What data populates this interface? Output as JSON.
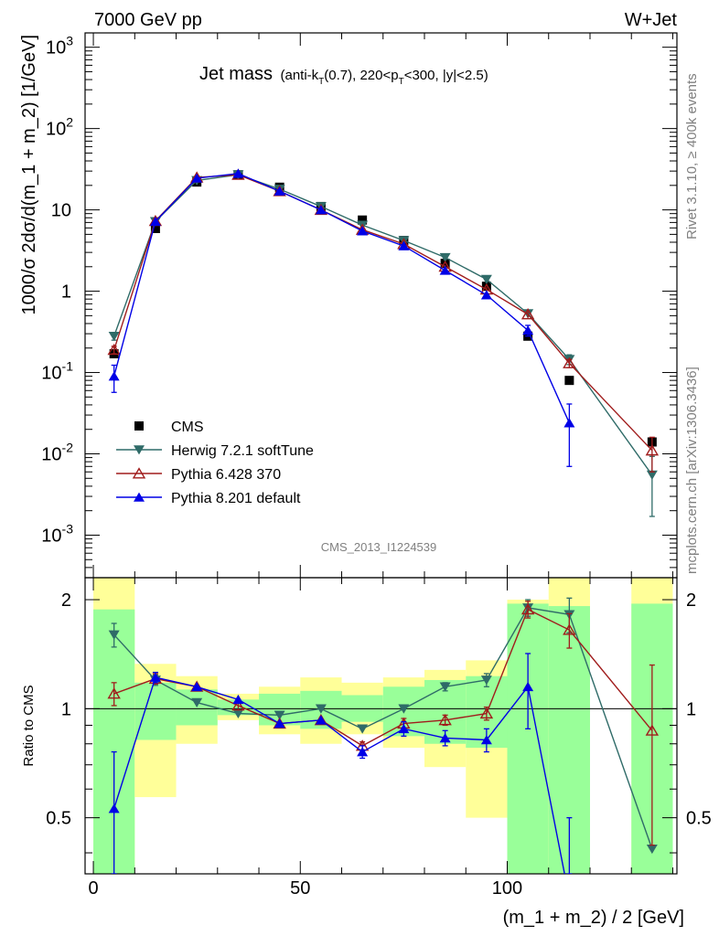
{
  "header": {
    "left_label": "7000 GeV pp",
    "right_label": "W+Jet",
    "side_label_top": "Rivet 3.1.10, ≥ 400k events",
    "side_label_bottom": "mcplots.cern.ch [arXiv:1306.3436]",
    "analysis_id": "CMS_2013_I1224539"
  },
  "chart_data": [
    {
      "type": "line",
      "panel": "main",
      "title_main": "Jet mass",
      "title_detail": "(anti-kT(0.7), 220<pT<300, |y|<2.5)",
      "ylabel": "1000/σ 2dσ/d(m_1 + m_2) [1/GeV]",
      "yscale": "log",
      "ylim": [
        0.0003,
        1500
      ],
      "xlim": [
        -2,
        141
      ],
      "y_ticks": [
        "10^-3",
        "10^-2",
        "10^-1",
        "1",
        "10",
        "10^2",
        "10^3"
      ],
      "legend_position": "bottom-left",
      "series": [
        {
          "name": "CMS",
          "marker": "square",
          "color": "#000000",
          "x": [
            5,
            15,
            25,
            35,
            45,
            55,
            65,
            75,
            85,
            95,
            105,
            115,
            135
          ],
          "y": [
            0.17,
            5.9,
            22.0,
            27.0,
            19.0,
            11.0,
            7.5,
            4.2,
            2.2,
            1.15,
            0.28,
            0.08,
            0.014
          ]
        },
        {
          "name": "Herwig 7.2.1 softTune",
          "marker": "triangle-down",
          "color": "#2f6b68",
          "x": [
            5,
            15,
            25,
            35,
            45,
            55,
            65,
            75,
            85,
            95,
            105,
            115,
            135
          ],
          "y": [
            0.28,
            7.2,
            23.0,
            27.0,
            18.0,
            11.0,
            6.5,
            4.2,
            2.6,
            1.4,
            0.53,
            0.145,
            0.0055
          ],
          "yerr": [
            0.03,
            0.3,
            0.5,
            0.5,
            0.4,
            0.3,
            0.2,
            0.15,
            0.1,
            0.08,
            0.04,
            0.02,
            0.0038
          ]
        },
        {
          "name": "Pythia 6.428 370",
          "marker": "triangle-open",
          "color": "#a01c1c",
          "x": [
            5,
            15,
            25,
            35,
            45,
            55,
            65,
            75,
            85,
            95,
            105,
            115,
            135
          ],
          "y": [
            0.19,
            7.3,
            25.0,
            27.0,
            17.0,
            10.0,
            5.7,
            3.8,
            2.0,
            1.05,
            0.52,
            0.13,
            0.011
          ],
          "yerr": [
            0.02,
            0.3,
            0.5,
            0.5,
            0.4,
            0.3,
            0.2,
            0.15,
            0.1,
            0.07,
            0.05,
            0.015,
            0.005
          ]
        },
        {
          "name": "Pythia 8.201 default",
          "marker": "triangle-up",
          "color": "#0000e6",
          "x": [
            5,
            15,
            25,
            35,
            45,
            55,
            65,
            75,
            85,
            95,
            105,
            115
          ],
          "y": [
            0.09,
            7.2,
            24.5,
            28.0,
            17.0,
            10.0,
            5.5,
            3.6,
            1.8,
            0.9,
            0.33,
            0.024
          ],
          "yerr": [
            0.033,
            0.3,
            0.5,
            0.5,
            0.4,
            0.3,
            0.2,
            0.15,
            0.1,
            0.06,
            0.05,
            0.017
          ]
        }
      ]
    },
    {
      "type": "line",
      "panel": "ratio",
      "ylabel": "Ratio to CMS",
      "xlabel": "(m_1 + m_2) / 2 [GeV]",
      "ylim": [
        0.35,
        2.3
      ],
      "xlim": [
        -2,
        141
      ],
      "x_ticks": [
        0,
        50,
        100
      ],
      "y_ticks": [
        0.5,
        1,
        2
      ],
      "reference_line": 1,
      "bands": {
        "inner_color": "#99ff99",
        "outer_color": "#ffff99",
        "bins": [
          {
            "x0": 0,
            "x1": 10,
            "inner": [
              0.35,
              1.88
            ],
            "outer": [
              0.35,
              2.3
            ]
          },
          {
            "x0": 10,
            "x1": 20,
            "inner": [
              0.82,
              1.18
            ],
            "outer": [
              0.57,
              1.33
            ]
          },
          {
            "x0": 20,
            "x1": 30,
            "inner": [
              0.9,
              1.13
            ],
            "outer": [
              0.8,
              1.23
            ]
          },
          {
            "x0": 30,
            "x1": 40,
            "inner": [
              0.96,
              1.06
            ],
            "outer": [
              0.93,
              1.1
            ]
          },
          {
            "x0": 40,
            "x1": 50,
            "inner": [
              0.9,
              1.1
            ],
            "outer": [
              0.85,
              1.15
            ]
          },
          {
            "x0": 50,
            "x1": 60,
            "inner": [
              0.88,
              1.12
            ],
            "outer": [
              0.8,
              1.22
            ]
          },
          {
            "x0": 60,
            "x1": 70,
            "inner": [
              0.92,
              1.09
            ],
            "outer": [
              0.85,
              1.18
            ]
          },
          {
            "x0": 70,
            "x1": 80,
            "inner": [
              0.84,
              1.15
            ],
            "outer": [
              0.78,
              1.22
            ]
          },
          {
            "x0": 80,
            "x1": 90,
            "inner": [
              0.8,
              1.2
            ],
            "outer": [
              0.69,
              1.28
            ]
          },
          {
            "x0": 90,
            "x1": 100,
            "inner": [
              0.78,
              1.23
            ],
            "outer": [
              0.5,
              1.36
            ]
          },
          {
            "x0": 100,
            "x1": 110,
            "inner": [
              0.35,
              1.95
            ],
            "outer": [
              0.35,
              2.0
            ]
          },
          {
            "x0": 110,
            "x1": 120,
            "inner": [
              0.35,
              1.92
            ],
            "outer": [
              0.35,
              2.3
            ]
          },
          {
            "x0": 130,
            "x1": 140,
            "inner": [
              0.35,
              1.95
            ],
            "outer": [
              0.35,
              2.3
            ]
          }
        ]
      },
      "series": [
        {
          "name": "Herwig 7.2.1 softTune",
          "marker": "triangle-down",
          "color": "#2f6b68",
          "x": [
            5,
            15,
            25,
            35,
            45,
            55,
            65,
            75,
            85,
            95,
            105,
            115,
            135
          ],
          "y": [
            1.6,
            1.2,
            1.04,
            0.97,
            0.96,
            1.0,
            0.88,
            1.0,
            1.15,
            1.2,
            1.9,
            1.82,
            0.41
          ],
          "yerr": [
            0.12,
            0.04,
            0.02,
            0.02,
            0.02,
            0.02,
            0.02,
            0.02,
            0.03,
            0.05,
            0.1,
            0.2,
            0.0
          ]
        },
        {
          "name": "Pythia 6.428 370",
          "marker": "triangle-open",
          "color": "#a01c1c",
          "x": [
            5,
            15,
            25,
            35,
            45,
            55,
            65,
            75,
            85,
            95,
            105,
            115,
            135
          ],
          "y": [
            1.1,
            1.21,
            1.15,
            1.02,
            0.91,
            0.93,
            0.79,
            0.91,
            0.93,
            0.97,
            1.88,
            1.65,
            0.87
          ],
          "yerr": [
            0.08,
            0.04,
            0.02,
            0.02,
            0.02,
            0.02,
            0.02,
            0.03,
            0.03,
            0.04,
            0.1,
            0.18,
            0.45
          ]
        },
        {
          "name": "Pythia 8.201 default",
          "marker": "triangle-up",
          "color": "#0000e6",
          "x": [
            5,
            15,
            25,
            35,
            45,
            55,
            65,
            75,
            85,
            95,
            105,
            115
          ],
          "y": [
            0.53,
            1.22,
            1.15,
            1.06,
            0.91,
            0.93,
            0.76,
            0.88,
            0.83,
            0.82,
            1.15,
            0.3
          ],
          "yerr": [
            0.23,
            0.04,
            0.02,
            0.02,
            0.02,
            0.02,
            0.03,
            0.04,
            0.04,
            0.06,
            0.27,
            0.2
          ]
        }
      ]
    }
  ]
}
